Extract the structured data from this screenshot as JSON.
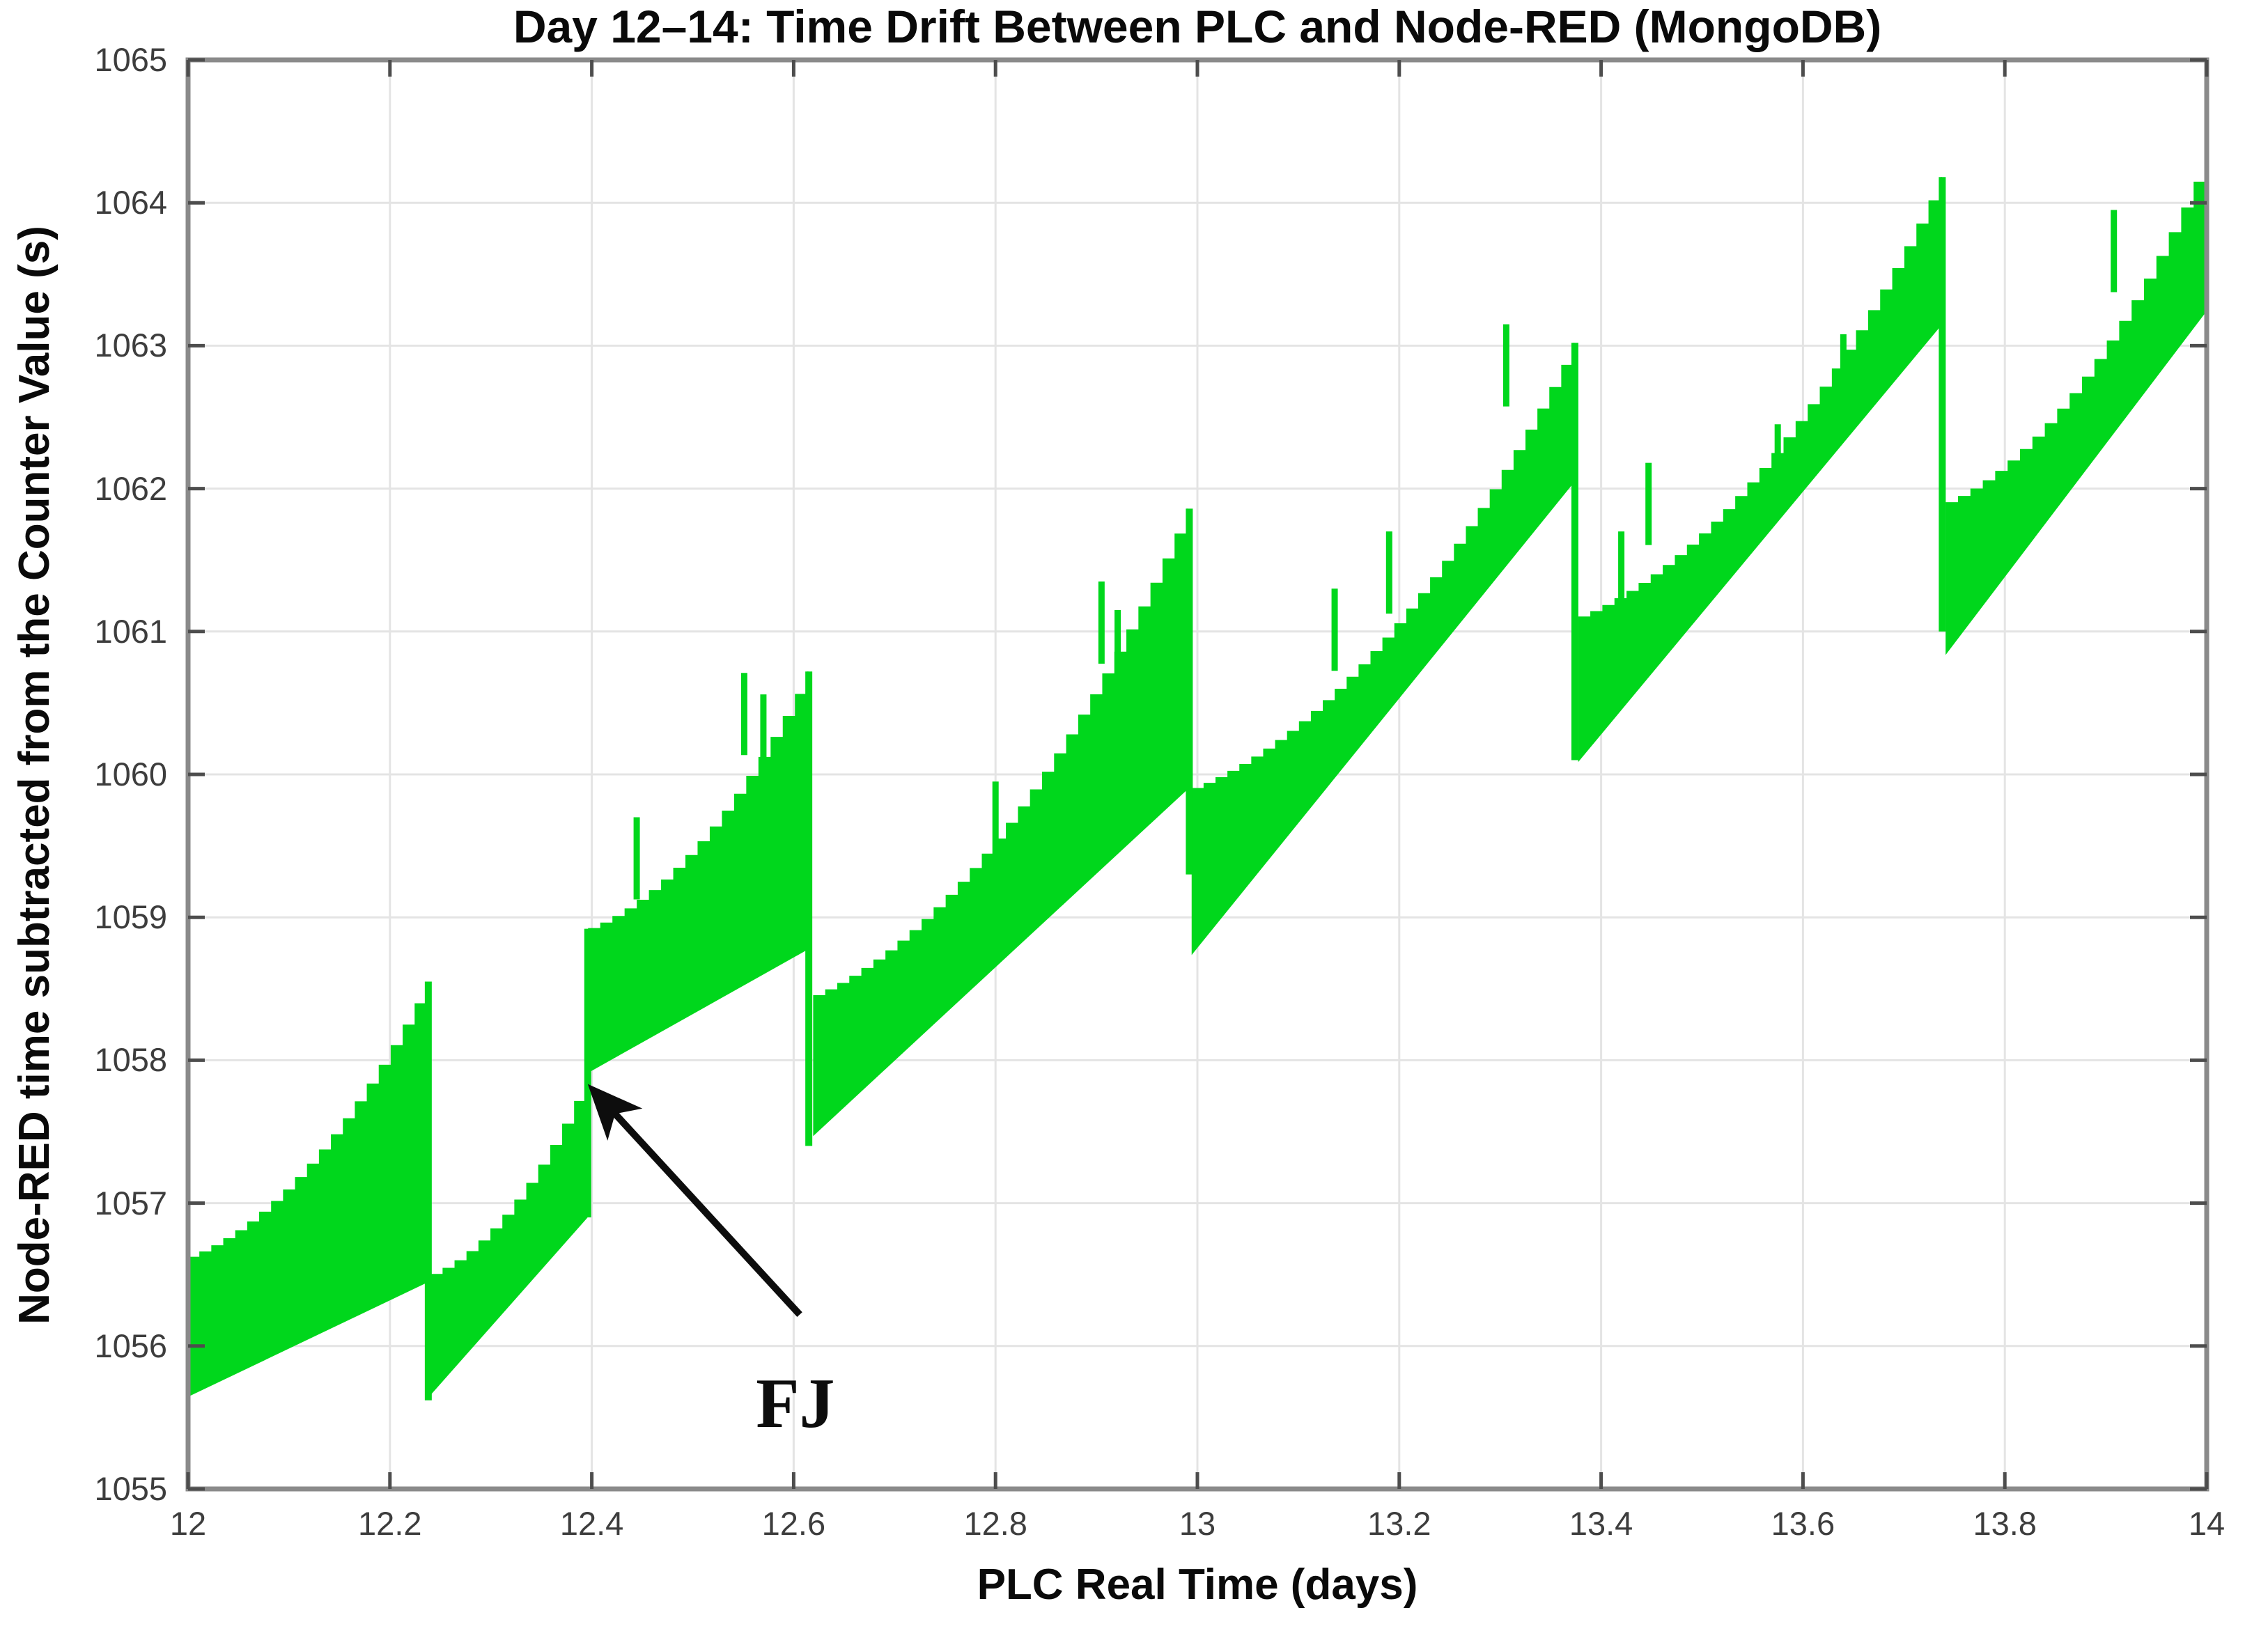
{
  "chart_data": {
    "type": "line",
    "title": "Day 12–14: Time Drift Between PLC and Node-RED (MongoDB)",
    "xlabel": "PLC Real Time (days)",
    "ylabel": "Node-RED time subtracted from the Counter Value (s)",
    "x_range": [
      12,
      14
    ],
    "y_range": [
      1055,
      1065
    ],
    "x_tick_values": [
      12,
      12.2,
      12.4,
      12.6,
      12.8,
      13,
      13.2,
      13.4,
      13.6,
      13.8,
      14
    ],
    "x_tick_labels": [
      "12",
      "12.2",
      "12.4",
      "12.6",
      "12.8",
      "13",
      "13.2",
      "13.4",
      "13.6",
      "13.8",
      "14"
    ],
    "y_tick_values": [
      1055,
      1056,
      1057,
      1058,
      1059,
      1060,
      1061,
      1062,
      1063,
      1064,
      1065
    ],
    "y_tick_labels": [
      "1055",
      "1056",
      "1057",
      "1058",
      "1059",
      "1060",
      "1061",
      "1062",
      "1063",
      "1064",
      "1065"
    ],
    "grid": true,
    "legend": "none",
    "line_color": "#00D71C",
    "grid_color": "#E4E4E4",
    "axis_color": "#8A8A8A",
    "tick_color": "#4D4D4D",
    "band_segments": [
      {
        "x": [
          12.0,
          12.237
        ],
        "bottom": [
          1055.65,
          1056.45
        ],
        "top": [
          1056.62,
          1058.55
        ]
      },
      {
        "x": [
          12.241,
          12.395
        ],
        "bottom": [
          1055.67,
          1056.9
        ],
        "top": [
          1056.5,
          1057.88
        ]
      },
      {
        "x": [
          12.397,
          12.614
        ],
        "bottom": [
          1057.92,
          1058.78
        ],
        "top": [
          1058.92,
          1060.72
        ]
      },
      {
        "x": [
          12.62,
          12.99
        ],
        "bottom": [
          1057.48,
          1059.9
        ],
        "top": [
          1058.45,
          1061.86
        ]
      },
      {
        "x": [
          12.995,
          13.373
        ],
        "bottom": [
          1058.75,
          1062.05
        ],
        "top": [
          1059.9,
          1063.02
        ]
      },
      {
        "x": [
          13.378,
          13.737
        ],
        "bottom": [
          1060.1,
          1063.15
        ],
        "top": [
          1061.1,
          1064.18
        ]
      },
      {
        "x": [
          13.742,
          14.0
        ],
        "bottom": [
          1060.85,
          1063.25
        ],
        "top": [
          1061.9,
          1064.33
        ]
      }
    ],
    "jumps": [
      {
        "x": 12.238,
        "y_top": 1058.55,
        "y_bottom": 1055.62,
        "type": "drop"
      },
      {
        "x": 12.396,
        "y_top": 1058.92,
        "y_bottom": 1056.9,
        "type": "forward-jump"
      },
      {
        "x": 12.615,
        "y_top": 1060.72,
        "y_bottom": 1057.4,
        "type": "drop"
      },
      {
        "x": 12.992,
        "y_top": 1061.86,
        "y_bottom": 1059.3,
        "type": "drop"
      },
      {
        "x": 13.374,
        "y_top": 1063.02,
        "y_bottom": 1060.1,
        "type": "drop"
      },
      {
        "x": 13.738,
        "y_top": 1064.18,
        "y_bottom": 1061.0,
        "type": "drop"
      }
    ],
    "spikes": [
      {
        "x": 12.4445,
        "top": 1059.7
      },
      {
        "x": 12.551,
        "top": 1060.71
      },
      {
        "x": 12.57,
        "top": 1060.56
      },
      {
        "x": 12.8,
        "top": 1059.95
      },
      {
        "x": 12.905,
        "top": 1061.35
      },
      {
        "x": 12.921,
        "top": 1061.15
      },
      {
        "x": 13.136,
        "top": 1061.3
      },
      {
        "x": 13.19,
        "top": 1061.7
      },
      {
        "x": 13.306,
        "top": 1063.15
      },
      {
        "x": 13.42,
        "top": 1061.7
      },
      {
        "x": 13.447,
        "top": 1062.18
      },
      {
        "x": 13.575,
        "top": 1062.45
      },
      {
        "x": 13.64,
        "top": 1063.08
      },
      {
        "x": 13.754,
        "top": 1061.8
      },
      {
        "x": 13.77,
        "top": 1062.0
      },
      {
        "x": 13.908,
        "top": 1063.95
      }
    ],
    "annotation": {
      "text": "FJ",
      "text_x": 12.604,
      "text_y": 1055.6,
      "arrow_from": [
        12.606,
        1056.22
      ],
      "arrow_to": [
        12.4016,
        1057.79
      ],
      "color": "#0d0d0d"
    }
  }
}
